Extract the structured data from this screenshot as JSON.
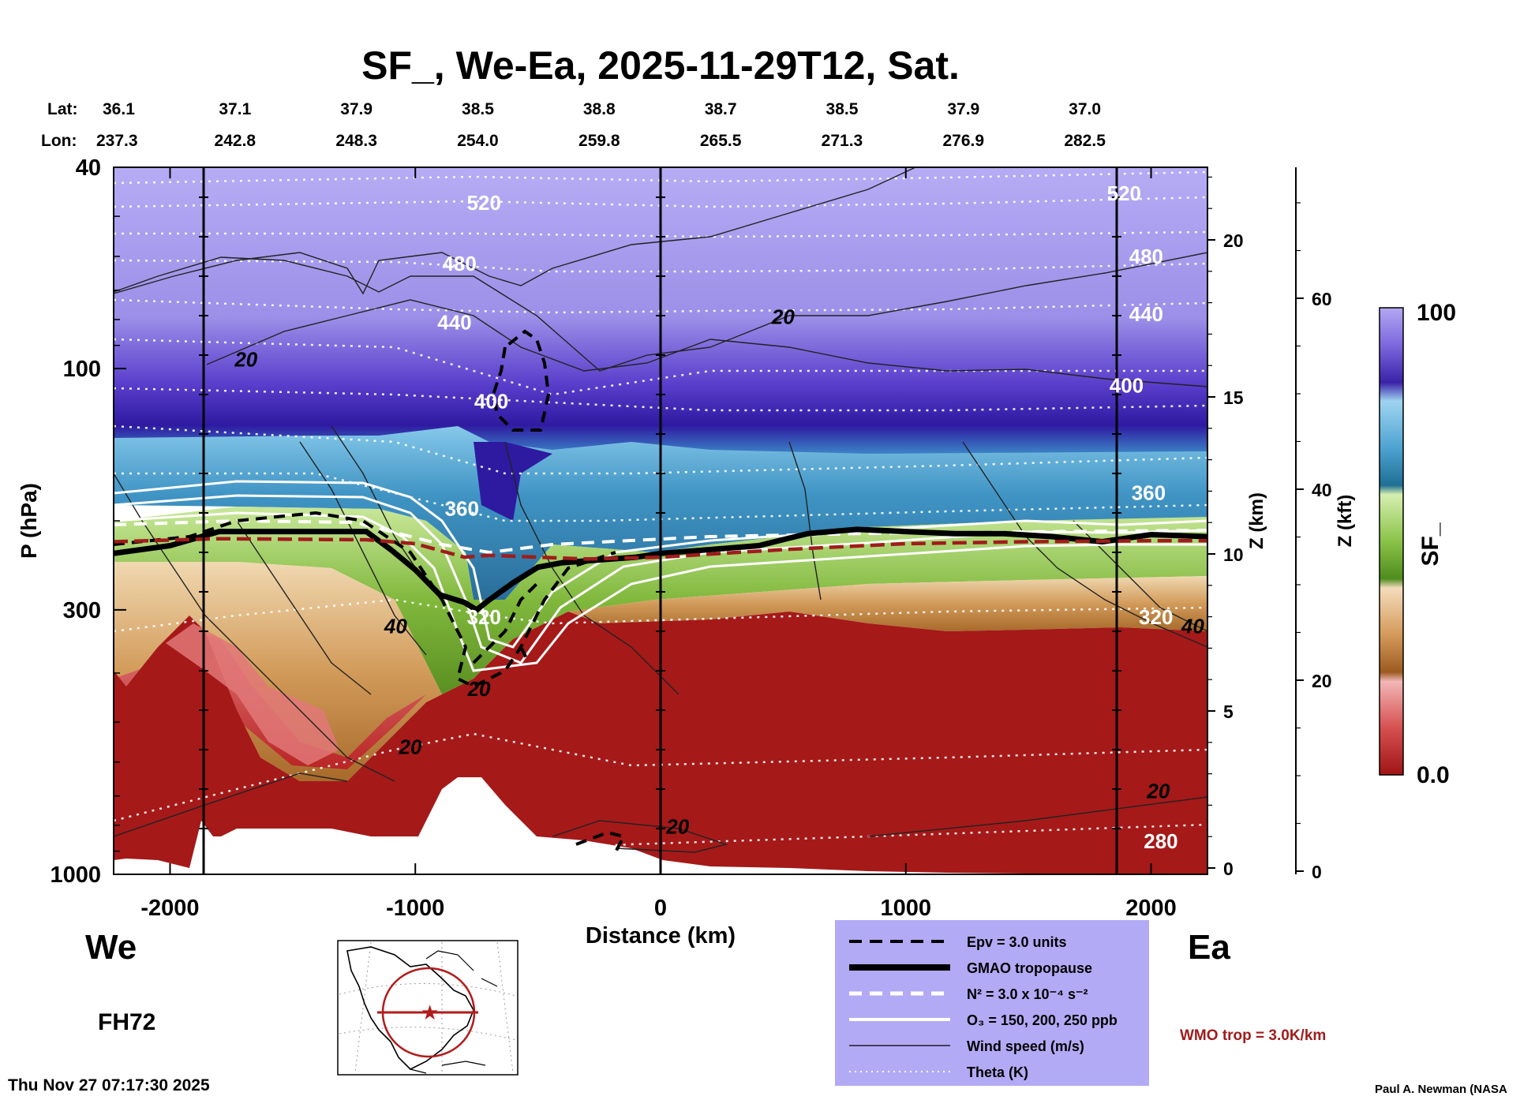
{
  "chart_data": {
    "type": "heatmap",
    "title": "SF_, We-Ea, 2025-11-29T12, Sat.",
    "xlabel": "Distance (km)",
    "ylabel": "P (hPa)",
    "y2label": "Z (km)",
    "y3label": "Z (kft)",
    "colorbar_label": "SF_",
    "xlim": [
      -2230,
      2230
    ],
    "ylim": [
      1000,
      40
    ],
    "y_scale": "log",
    "x_ticks": [
      -2000,
      -1000,
      0,
      1000,
      2000
    ],
    "x_tick_labels": [
      "-2000",
      "-1000",
      "0",
      "1000",
      "2000"
    ],
    "y_ticks": [
      40,
      100,
      300,
      1000
    ],
    "y_tick_labels": [
      "40",
      "100",
      "300",
      "1000"
    ],
    "z_km_ticks": [
      0,
      5,
      10,
      15,
      20
    ],
    "z_km_tick_labels": [
      "0",
      "5",
      "10",
      "15",
      "20"
    ],
    "z_kft_ticks": [
      0,
      20,
      40,
      60
    ],
    "z_kft_tick_labels": [
      "0",
      "20",
      "40",
      "60"
    ],
    "colorbar_range": [
      0.0,
      100
    ],
    "colorbar_tick_labels": [
      "0.0",
      "100"
    ],
    "lat_label": "Lat:",
    "lon_label": "Lon:",
    "stations": [
      {
        "x": -2230,
        "lat": "36.1",
        "lon": "237.3"
      },
      {
        "x": -1735,
        "lat": "37.1",
        "lon": "242.8"
      },
      {
        "x": -1240,
        "lat": "37.9",
        "lon": "248.3"
      },
      {
        "x": -745,
        "lat": "38.5",
        "lon": "254.0"
      },
      {
        "x": -250,
        "lat": "38.8",
        "lon": "259.8"
      },
      {
        "x": 245,
        "lat": "38.7",
        "lon": "265.5"
      },
      {
        "x": 740,
        "lat": "38.5",
        "lon": "271.3"
      },
      {
        "x": 1235,
        "lat": "37.9",
        "lon": "276.9"
      },
      {
        "x": 1730,
        "lat": "37.0",
        "lon": "282.5"
      }
    ],
    "tropopause": {
      "x": [
        -2230,
        -2000,
        -1800,
        -1600,
        -1400,
        -1200,
        -1100,
        -1000,
        -900,
        -800,
        -750,
        -700,
        -600,
        -500,
        -400,
        -300,
        -200,
        -100,
        0,
        200,
        400,
        600,
        800,
        1000,
        1200,
        1400,
        1600,
        1800,
        2000,
        2230
      ],
      "p": [
        232,
        224,
        210,
        210,
        210,
        210,
        228,
        250,
        280,
        290,
        300,
        287,
        265,
        247,
        242,
        240,
        238,
        236,
        232,
        228,
        224,
        212,
        208,
        210,
        212,
        212,
        215,
        220,
        213,
        215
      ]
    },
    "wmo_tropopause": {
      "x": [
        -2230,
        -1800,
        -1200,
        -1000,
        -800,
        -700,
        -500,
        -300,
        0,
        500,
        1000,
        1500,
        2000,
        2230
      ],
      "p": [
        220,
        217,
        218,
        222,
        236,
        234,
        236,
        238,
        236,
        228,
        222,
        220,
        219,
        219
      ]
    },
    "theta_labels": [
      {
        "text": "520",
        "x": -720,
        "p": 47
      },
      {
        "text": "520",
        "x": 1890,
        "p": 45
      },
      {
        "text": "480",
        "x": -820,
        "p": 62
      },
      {
        "text": "480",
        "x": 1980,
        "p": 60
      },
      {
        "text": "440",
        "x": -840,
        "p": 81
      },
      {
        "text": "440",
        "x": 1980,
        "p": 78
      },
      {
        "text": "400",
        "x": -690,
        "p": 116
      },
      {
        "text": "400",
        "x": 1900,
        "p": 108
      },
      {
        "text": "360",
        "x": -810,
        "p": 189
      },
      {
        "text": "360",
        "x": 1990,
        "p": 176
      },
      {
        "text": "320",
        "x": -720,
        "p": 310
      },
      {
        "text": "320",
        "x": 2020,
        "p": 310
      },
      {
        "text": "280",
        "x": 2040,
        "p": 860
      }
    ],
    "wind_labels": [
      {
        "text": "20",
        "x": -1690,
        "p": 96
      },
      {
        "text": "20",
        "x": 500,
        "p": 79
      },
      {
        "text": "40",
        "x": -1080,
        "p": 323
      },
      {
        "text": "40",
        "x": 2170,
        "p": 323
      },
      {
        "text": "20",
        "x": -740,
        "p": 430
      },
      {
        "text": "20",
        "x": -1020,
        "p": 560
      },
      {
        "text": "20",
        "x": 2030,
        "p": 685
      },
      {
        "text": "20",
        "x": 70,
        "p": 805
      }
    ]
  },
  "labels": {
    "west": "We",
    "east": "Ea",
    "forecast_hour": "FH72",
    "timestamp": "Thu Nov 27 07:17:30 2025",
    "author": "Paul A. Newman (NASA",
    "wmo_note": "WMO trop = 3.0K/km"
  },
  "legend": {
    "items": [
      {
        "style": "dashed-black",
        "label": "Epv = 3.0 units"
      },
      {
        "style": "thick-black",
        "label": "GMAO tropopause"
      },
      {
        "style": "dashed-white",
        "label": "N² = 3.0 x 10⁻⁴ s⁻²"
      },
      {
        "style": "solid-white",
        "label": "O₃ = 150, 200, 250 ppb"
      },
      {
        "style": "thin-black",
        "label": "Wind speed (m/s)"
      },
      {
        "style": "dotted-white",
        "label": "Theta (K)"
      }
    ]
  },
  "colors": {
    "legend_bg": "#b3aaf5",
    "strat_top": "#b6acf4",
    "strat_dark": "#3d1fa6",
    "trop_red": "#a51919",
    "wmo_line": "#a01c1c",
    "cyan": "#5fb6dc",
    "green": "#5a9a23",
    "tan": "#d9a870"
  }
}
